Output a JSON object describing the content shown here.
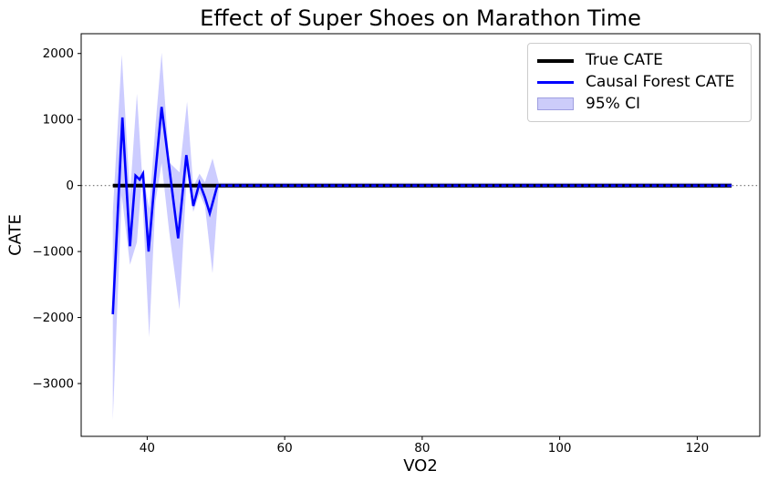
{
  "chart_data": {
    "type": "line",
    "title": "Effect of Super Shoes on Marathon Time",
    "xlabel": "VO2",
    "ylabel": "CATE",
    "xlim": [
      30.4,
      129.1
    ],
    "ylim": [
      -3800,
      2300
    ],
    "x_ticks": [
      40,
      60,
      80,
      100,
      120
    ],
    "y_ticks": [
      2000,
      1000,
      0,
      -1000,
      -2000,
      -3000
    ],
    "grid": false,
    "legend_position": "upper right",
    "zero_reference_line": {
      "y": 0,
      "style": "dotted",
      "color": "#7f7f7f"
    },
    "series": [
      {
        "name": "True CATE",
        "color": "#000000",
        "style": "solid",
        "linewidth": 4,
        "x": [
          35,
          125
        ],
        "y": [
          0,
          0
        ]
      },
      {
        "name": "Causal Forest CATE",
        "color": "#0000ff",
        "style": "solid",
        "linewidth": 2.6,
        "x": [
          35,
          36.4,
          37.5,
          38.3,
          38.9,
          39.4,
          40.2,
          41.1,
          42.1,
          44.5,
          45.7,
          46.7,
          47.6,
          48.4,
          49.1,
          50.2,
          52,
          60,
          70,
          80,
          90,
          100,
          110,
          125
        ],
        "y": [
          -1950,
          1030,
          -920,
          150,
          90,
          180,
          -1000,
          95,
          1190,
          -800,
          460,
          -310,
          40,
          -180,
          -420,
          0,
          0,
          0,
          0,
          0,
          0,
          0,
          0,
          0
        ]
      }
    ],
    "ci_band": {
      "name": "95% CI",
      "color": "#0000ff",
      "alpha": 0.2,
      "x": [
        35,
        36.3,
        37.5,
        38.5,
        39.2,
        40.3,
        41.2,
        42.1,
        43.2,
        44.7,
        45.8,
        46.7,
        47.6,
        48.4,
        49.5,
        50.4,
        52,
        125
      ],
      "upper": [
        -400,
        1985,
        -150,
        1390,
        260,
        -350,
        900,
        2015,
        350,
        200,
        1270,
        -20,
        180,
        50,
        410,
        40,
        40,
        40
      ],
      "lower": [
        -3550,
        -150,
        -1200,
        -860,
        60,
        -2300,
        -250,
        340,
        -700,
        -1880,
        230,
        -400,
        -120,
        -310,
        -1330,
        -40,
        -40,
        -40
      ]
    },
    "overlap_dash": {
      "y": 0,
      "x_start": 50.4,
      "x_end": 125
    }
  },
  "legend": {
    "items": [
      {
        "label": "True CATE",
        "swatch": "line",
        "color": "#000000"
      },
      {
        "label": "Causal Forest CATE",
        "swatch": "line",
        "color": "#0000ff"
      },
      {
        "label": "95% CI",
        "swatch": "patch",
        "color": "#ccccfa"
      }
    ]
  }
}
